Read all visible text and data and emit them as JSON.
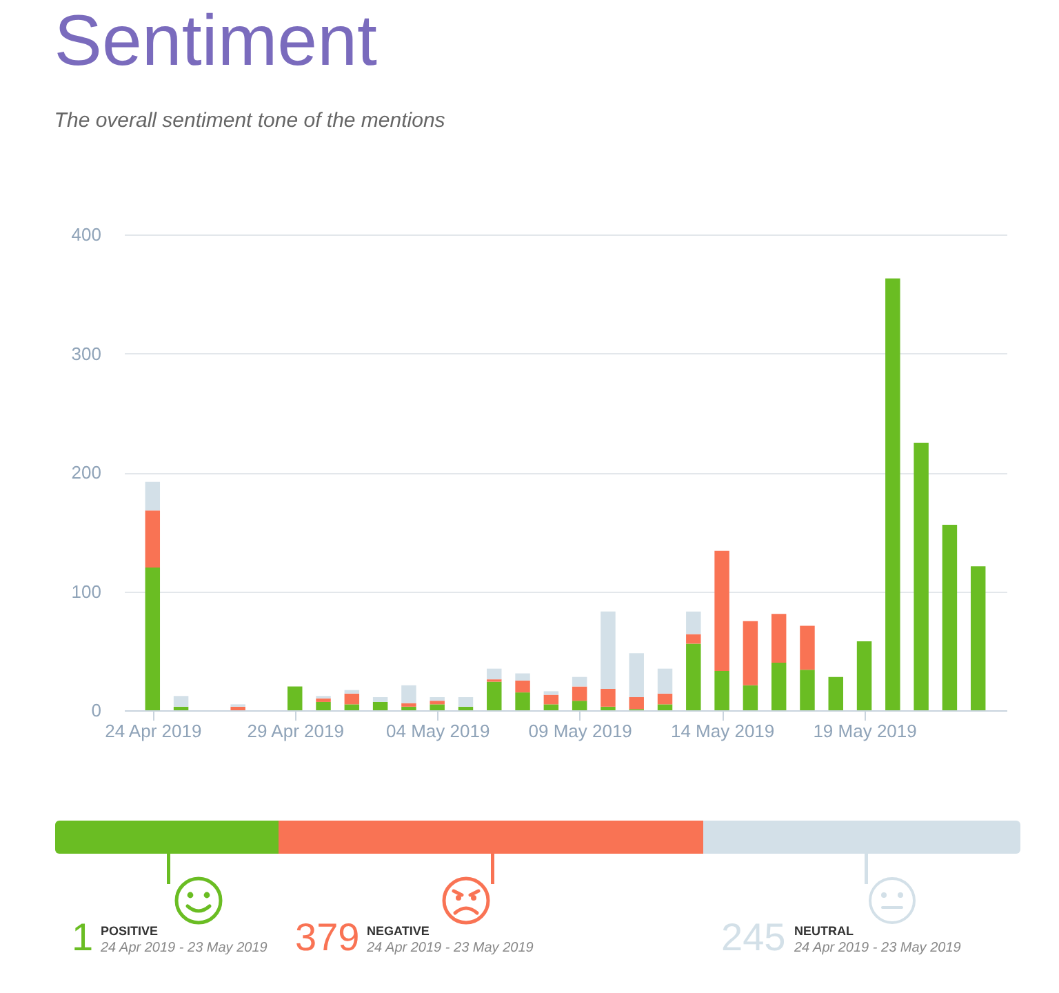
{
  "chart_data": [
    {
      "type": "bar",
      "title": "Sentiment",
      "subtitle": "The overall sentiment tone of the mentions",
      "stacked": true,
      "x": [
        "2019-04-24",
        "2019-04-25",
        "2019-04-26",
        "2019-04-27",
        "2019-04-28",
        "2019-04-29",
        "2019-04-30",
        "2019-05-01",
        "2019-05-02",
        "2019-05-03",
        "2019-05-04",
        "2019-05-05",
        "2019-05-06",
        "2019-05-07",
        "2019-05-08",
        "2019-05-09",
        "2019-05-10",
        "2019-05-11",
        "2019-05-12",
        "2019-05-13",
        "2019-05-14",
        "2019-05-15",
        "2019-05-16",
        "2019-05-17",
        "2019-05-18",
        "2019-05-19",
        "2019-05-20",
        "2019-05-21",
        "2019-05-22",
        "2019-05-23"
      ],
      "series": [
        {
          "color": "#6abd23",
          "values": [
            120,
            3,
            0,
            0,
            0,
            20,
            7,
            5,
            7,
            3,
            5,
            3,
            24,
            15,
            5,
            8,
            3,
            1,
            5,
            56,
            33,
            21,
            40,
            34,
            28,
            58,
            363,
            225,
            156,
            121
          ]
        },
        {
          "color": "#f97354",
          "values": [
            48,
            0,
            0,
            3,
            0,
            0,
            3,
            9,
            0,
            3,
            3,
            0,
            2,
            10,
            8,
            12,
            15,
            10,
            9,
            8,
            101,
            54,
            41,
            37,
            0,
            0,
            0,
            0,
            0,
            0
          ]
        },
        {
          "color": "#d3e0e8",
          "values": [
            24,
            9,
            0,
            2,
            0,
            0,
            2,
            3,
            4,
            15,
            3,
            8,
            9,
            6,
            3,
            8,
            65,
            37,
            21,
            19,
            0,
            0,
            0,
            0,
            0,
            0,
            0,
            0,
            0,
            0
          ]
        }
      ],
      "xlim": [
        "2019-04-23",
        "2019-05-24"
      ],
      "xticks": [
        {
          "value": "2019-04-24",
          "label": "24 Apr 2019"
        },
        {
          "value": "2019-04-29",
          "label": "29 Apr 2019"
        },
        {
          "value": "2019-05-04",
          "label": "04 May 2019"
        },
        {
          "value": "2019-05-09",
          "label": "09 May 2019"
        },
        {
          "value": "2019-05-14",
          "label": "14 May 2019"
        },
        {
          "value": "2019-05-19",
          "label": "19 May 2019"
        }
      ],
      "ylim": [
        0,
        400
      ],
      "yticks": [
        0,
        100,
        200,
        300,
        400
      ],
      "grid": "y"
    },
    {
      "type": "other",
      "categories": [
        "POSITIVE",
        "NEGATIVE",
        "NEUTRAL"
      ],
      "values": [
        1,
        379,
        245
      ],
      "colors": [
        "#6abd23",
        "#f97354",
        "#d3e0e8"
      ],
      "data_labels": true,
      "annotations": [
        "24 Apr 2019 - 23 May 2019",
        "24 Apr 2019 - 23 May 2019",
        "24 Apr 2019 - 23 May 2019"
      ]
    }
  ]
}
